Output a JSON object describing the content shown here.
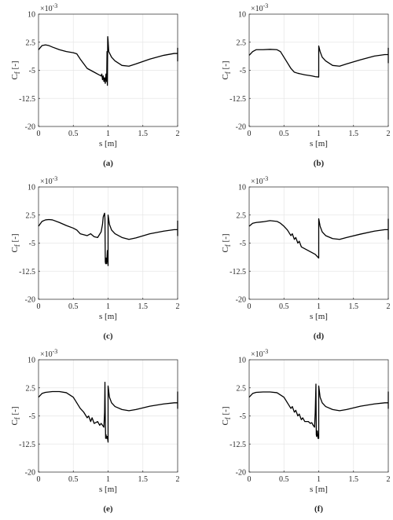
{
  "chart_data": [
    {
      "type": "line",
      "panel_label": "(a)",
      "xlabel": "s [m]",
      "ylabel": "Cf [-]",
      "exponent": "×10-3",
      "xlim": [
        0,
        2
      ],
      "ylim": [
        -20,
        10
      ],
      "xticks": [
        "0",
        "0.5",
        "1",
        "1.5",
        "2"
      ],
      "yticks": [
        "-20",
        "-12.5",
        "-5",
        "2.5",
        "10"
      ],
      "grid": true,
      "series": [
        {
          "x": [
            0,
            0.05,
            0.1,
            0.15,
            0.2,
            0.3,
            0.4,
            0.5,
            0.55,
            0.6,
            0.7,
            0.8,
            0.85,
            0.9,
            0.91,
            0.92,
            0.93,
            0.94,
            0.95,
            0.96,
            0.97,
            0.98,
            0.985,
            0.99,
            0.995,
            1.0,
            1.01,
            1.05,
            1.1,
            1.2,
            1.3,
            1.4,
            1.6,
            1.8,
            1.95,
            2.0,
            2.0,
            2.0
          ],
          "y": [
            0.5,
            1.6,
            1.8,
            1.6,
            1.2,
            0.5,
            0,
            -0.3,
            -0.6,
            -2,
            -4.5,
            -5.5,
            -6,
            -6.5,
            -6,
            -7.5,
            -6.5,
            -8,
            -7,
            -8.5,
            -6,
            -8,
            0,
            -9,
            4,
            3,
            0,
            -1.5,
            -2.5,
            -3.7,
            -3.9,
            -3.3,
            -2,
            -1,
            -0.5,
            -0.5,
            -2.5,
            1
          ]
        }
      ]
    },
    {
      "type": "line",
      "panel_label": "(b)",
      "xlabel": "s [m]",
      "ylabel": "Cf [-]",
      "exponent": "×10-3",
      "xlim": [
        0,
        2
      ],
      "ylim": [
        -20,
        10
      ],
      "xticks": [
        "0",
        "0.5",
        "1",
        "1.5",
        "2"
      ],
      "yticks": [
        "-20",
        "-12.5",
        "-5",
        "2.5",
        "10"
      ],
      "grid": true,
      "series": [
        {
          "x": [
            0,
            0.05,
            0.1,
            0.2,
            0.3,
            0.4,
            0.45,
            0.5,
            0.55,
            0.6,
            0.65,
            0.7,
            0.8,
            0.9,
            0.95,
            1.0,
            1.0,
            1.02,
            1.05,
            1.1,
            1.2,
            1.3,
            1.4,
            1.6,
            1.8,
            1.95,
            2.0,
            2.0,
            2.0
          ],
          "y": [
            -1,
            0,
            0.5,
            0.5,
            0.6,
            0.5,
            0,
            -1.5,
            -3,
            -4.5,
            -5.5,
            -5.8,
            -6.2,
            -6.5,
            -6.7,
            -6.8,
            1.5,
            0,
            -1.5,
            -2.5,
            -3.7,
            -3.9,
            -3.3,
            -2.2,
            -1.2,
            -0.8,
            -0.8,
            -3,
            1
          ]
        }
      ]
    },
    {
      "type": "line",
      "panel_label": "(c)",
      "xlabel": "s [m]",
      "ylabel": "Cf [-]",
      "exponent": "×10-3",
      "xlim": [
        0,
        2
      ],
      "ylim": [
        -20,
        10
      ],
      "xticks": [
        "0",
        "0.5",
        "1",
        "1.5",
        "2"
      ],
      "yticks": [
        "-20",
        "-12.5",
        "-5",
        "2.5",
        "10"
      ],
      "grid": true,
      "series": [
        {
          "x": [
            0,
            0.05,
            0.1,
            0.15,
            0.2,
            0.3,
            0.4,
            0.5,
            0.55,
            0.6,
            0.7,
            0.75,
            0.8,
            0.85,
            0.9,
            0.92,
            0.93,
            0.94,
            0.95,
            0.955,
            0.96,
            0.965,
            0.97,
            0.98,
            0.99,
            1.0,
            1.0,
            1.02,
            1.05,
            1.1,
            1.2,
            1.3,
            1.4,
            1.6,
            1.8,
            1.95,
            2.0,
            2.0,
            2.0
          ],
          "y": [
            -0.5,
            0.8,
            1.2,
            1.3,
            1.2,
            0.5,
            -0.3,
            -1,
            -1.5,
            -2.5,
            -3,
            -2.5,
            -3.3,
            -3.5,
            -2,
            0,
            2,
            2.5,
            3,
            1.5,
            -10,
            -10.5,
            -9,
            -10.5,
            -7,
            -11,
            2.5,
            0,
            -1.5,
            -2.5,
            -3.5,
            -4,
            -3.6,
            -2.5,
            -1.8,
            -1.4,
            -1.4,
            -3,
            1
          ]
        }
      ]
    },
    {
      "type": "line",
      "panel_label": "(d)",
      "xlabel": "s [m]",
      "ylabel": "Cf [-]",
      "exponent": "×10-3",
      "xlim": [
        0,
        2
      ],
      "ylim": [
        -20,
        10
      ],
      "xticks": [
        "0",
        "0.5",
        "1",
        "1.5",
        "2"
      ],
      "yticks": [
        "-20",
        "-12.5",
        "-5",
        "2.5",
        "10"
      ],
      "grid": true,
      "series": [
        {
          "x": [
            0,
            0.05,
            0.1,
            0.2,
            0.3,
            0.4,
            0.45,
            0.5,
            0.55,
            0.6,
            0.62,
            0.65,
            0.67,
            0.7,
            0.72,
            0.75,
            0.8,
            0.85,
            0.9,
            0.95,
            1.0,
            1.0,
            1.02,
            1.05,
            1.1,
            1.2,
            1.3,
            1.4,
            1.6,
            1.8,
            1.95,
            2.0,
            2.0,
            2.0
          ],
          "y": [
            -0.5,
            0.3,
            0.5,
            0.7,
            1,
            0.8,
            0.3,
            -0.5,
            -1.5,
            -3,
            -2.5,
            -4,
            -3.5,
            -5,
            -4.5,
            -6,
            -6.5,
            -7,
            -7.5,
            -8,
            -9,
            1.5,
            -0.5,
            -2,
            -3,
            -3.8,
            -4,
            -3.5,
            -2.6,
            -1.8,
            -1.4,
            -1.4,
            -4,
            1.5
          ]
        }
      ]
    },
    {
      "type": "line",
      "panel_label": "(e)",
      "xlabel": "s [m]",
      "ylabel": "Cf [-]",
      "exponent": "×10-3",
      "xlim": [
        0,
        2
      ],
      "ylim": [
        -20,
        10
      ],
      "xticks": [
        "0",
        "0.5",
        "1",
        "1.5",
        "2"
      ],
      "yticks": [
        "-20",
        "-12.5",
        "-5",
        "2.5",
        "10"
      ],
      "grid": true,
      "series": [
        {
          "x": [
            0,
            0.05,
            0.1,
            0.2,
            0.3,
            0.4,
            0.5,
            0.55,
            0.6,
            0.65,
            0.7,
            0.72,
            0.75,
            0.77,
            0.8,
            0.85,
            0.88,
            0.9,
            0.92,
            0.94,
            0.95,
            0.955,
            0.96,
            0.965,
            0.97,
            0.98,
            0.99,
            1.0,
            1.0,
            1.02,
            1.05,
            1.1,
            1.2,
            1.3,
            1.4,
            1.6,
            1.8,
            1.95,
            2.0,
            2.0,
            2.0
          ],
          "y": [
            0,
            1,
            1.3,
            1.5,
            1.5,
            1.2,
            0,
            -1.5,
            -3,
            -4,
            -5.5,
            -5,
            -6.5,
            -5.5,
            -7,
            -6.5,
            -7.5,
            -7,
            -7.5,
            -8,
            -4,
            4,
            -6,
            -11,
            -10,
            -11,
            -10.5,
            -12,
            3,
            0,
            -1.5,
            -2.5,
            -3.3,
            -3.6,
            -3.3,
            -2.4,
            -1.8,
            -1.5,
            -1.5,
            -3,
            1.5
          ]
        }
      ]
    },
    {
      "type": "line",
      "panel_label": "(f)",
      "xlabel": "s [m]",
      "ylabel": "Cf [-]",
      "exponent": "×10-3",
      "xlim": [
        0,
        2
      ],
      "ylim": [
        -20,
        10
      ],
      "xticks": [
        "0",
        "0.5",
        "1",
        "1.5",
        "2"
      ],
      "yticks": [
        "-20",
        "-12.5",
        "-5",
        "2.5",
        "10"
      ],
      "grid": true,
      "series": [
        {
          "x": [
            0,
            0.05,
            0.1,
            0.2,
            0.3,
            0.4,
            0.5,
            0.55,
            0.6,
            0.62,
            0.65,
            0.67,
            0.7,
            0.72,
            0.75,
            0.77,
            0.8,
            0.85,
            0.88,
            0.9,
            0.92,
            0.94,
            0.95,
            0.96,
            0.965,
            0.97,
            0.98,
            0.99,
            1.0,
            1.0,
            1.02,
            1.05,
            1.1,
            1.2,
            1.3,
            1.4,
            1.6,
            1.8,
            1.95,
            2.0,
            2.0,
            2.0
          ],
          "y": [
            0,
            1,
            1.3,
            1.4,
            1.4,
            1.2,
            0,
            -1.5,
            -3,
            -2.5,
            -4,
            -3.5,
            -5,
            -4.5,
            -6,
            -5.5,
            -6.5,
            -6.5,
            -7,
            -6.8,
            -7.5,
            -8,
            -4,
            3.5,
            -10,
            -10.5,
            -9,
            -11,
            -11,
            3,
            0,
            -1.5,
            -2.5,
            -3.3,
            -3.6,
            -3.3,
            -2.4,
            -1.8,
            -1.5,
            -1.5,
            -3,
            1.5
          ]
        }
      ]
    }
  ]
}
